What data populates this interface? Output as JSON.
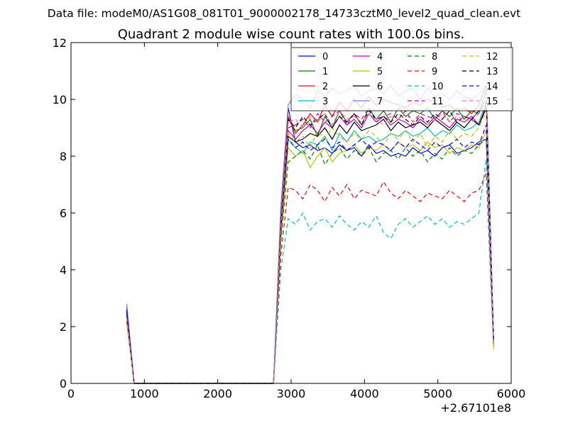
{
  "suptitle": "Data file: modeM0/AS1G08_081T01_9000002178_14733cztM0_level2_quad_clean.evt",
  "chart_data": {
    "type": "line",
    "title": "Quadrant 2 module wise count rates with 100.0s bins.",
    "xlabel": "",
    "ylabel": "",
    "xlim": [
      0,
      6000
    ],
    "ylim": [
      0,
      12
    ],
    "x_ticks": [
      0,
      1000,
      2000,
      3000,
      4000,
      5000,
      6000
    ],
    "x_tick_labels": [
      "0",
      "1000",
      "2000",
      "3000",
      "4000",
      "5000",
      "6000"
    ],
    "y_ticks": [
      0,
      2,
      4,
      6,
      8,
      10,
      12
    ],
    "y_tick_labels": [
      "0",
      "2",
      "4",
      "6",
      "8",
      "10",
      "12"
    ],
    "x_offset_label": "+2.67101e8",
    "grid": false,
    "legend_location": "upper right",
    "legend_columns": 4,
    "x_early": [
      760,
      860,
      960,
      1060,
      1160,
      1260,
      1360,
      1460,
      1560,
      1660,
      1760,
      1860,
      1960,
      2060,
      2160,
      2260,
      2360,
      2460,
      2560,
      2660,
      2760
    ],
    "x_late": [
      2760,
      2860,
      2960,
      3060,
      3160,
      3260,
      3360,
      3460,
      3560,
      3660,
      3760,
      3860,
      3960,
      4060,
      4160,
      4260,
      4360,
      4460,
      4560,
      4660,
      4760,
      4860,
      4960,
      5060,
      5160,
      5260,
      5360,
      5460,
      5560,
      5660,
      5760
    ],
    "series": [
      {
        "name": "0",
        "color": "#0000ff",
        "dash": "solid",
        "start": 2.7,
        "values": [
          0.0,
          5.5,
          9.7,
          8.5,
          8.3,
          8.4,
          8.2,
          8.3,
          8.1,
          8.4,
          8.2,
          8.3,
          8.0,
          8.4,
          8.1,
          8.2,
          8.0,
          8.1,
          8.0,
          8.3,
          8.1,
          8.2,
          8.0,
          8.3,
          8.4,
          8.1,
          8.2,
          8.3,
          8.5,
          8.6,
          1.5
        ]
      },
      {
        "name": "1",
        "color": "#008000",
        "dash": "solid",
        "start": 2.6,
        "values": [
          0.0,
          5.3,
          9.3,
          8.9,
          9.0,
          9.3,
          8.7,
          9.4,
          9.0,
          9.6,
          9.2,
          9.5,
          9.1,
          9.7,
          9.3,
          9.6,
          9.2,
          9.7,
          9.4,
          9.6,
          9.5,
          9.7,
          9.3,
          9.6,
          9.4,
          9.7,
          9.3,
          9.6,
          9.5,
          10.3,
          1.4
        ]
      },
      {
        "name": "2",
        "color": "#ff0000",
        "dash": "solid",
        "start": 2.5,
        "values": [
          0.0,
          5.7,
          9.4,
          8.8,
          9.1,
          9.5,
          9.2,
          9.8,
          9.4,
          9.9,
          9.6,
          10.0,
          9.7,
          10.1,
          9.8,
          10.0,
          9.9,
          9.8,
          9.7,
          9.9,
          9.8,
          10.0,
          9.9,
          9.7,
          9.8,
          9.6,
          9.7,
          9.5,
          9.8,
          10.5,
          1.4
        ]
      },
      {
        "name": "3",
        "color": "#00bfbf",
        "dash": "solid",
        "start": 2.4,
        "values": [
          0.0,
          5.4,
          8.6,
          8.3,
          8.1,
          8.5,
          8.4,
          8.7,
          8.2,
          8.8,
          8.5,
          8.9,
          8.6,
          8.7,
          8.5,
          8.6,
          8.8,
          8.7,
          8.9,
          8.7,
          8.8,
          9.0,
          8.7,
          8.9,
          8.8,
          9.1,
          8.9,
          9.0,
          9.2,
          9.9,
          1.5
        ]
      },
      {
        "name": "4",
        "color": "#bf00bf",
        "dash": "solid",
        "start": 2.3,
        "values": [
          0.0,
          5.2,
          8.9,
          8.6,
          8.9,
          9.1,
          8.8,
          9.2,
          9.0,
          9.4,
          9.1,
          9.3,
          9.0,
          9.5,
          9.2,
          9.4,
          9.1,
          9.3,
          9.2,
          9.0,
          9.3,
          9.1,
          9.4,
          9.2,
          9.0,
          9.3,
          9.2,
          9.4,
          9.1,
          9.8,
          1.4
        ]
      },
      {
        "name": "5",
        "color": "#bfbf00",
        "dash": "solid",
        "start": 2.2,
        "values": [
          0.0,
          5.0,
          8.3,
          8.0,
          8.2,
          7.6,
          8.0,
          8.3,
          7.8,
          8.1,
          8.2,
          8.4,
          8.1,
          8.3,
          8.2,
          8.4,
          8.2,
          8.5,
          8.3,
          8.4,
          8.2,
          8.5,
          8.3,
          8.4,
          8.1,
          8.3,
          8.2,
          8.4,
          8.3,
          8.9,
          1.2
        ]
      },
      {
        "name": "6",
        "color": "#000000",
        "dash": "solid",
        "start": 2.6,
        "values": [
          0.0,
          5.5,
          8.7,
          8.5,
          8.6,
          8.8,
          8.7,
          9.0,
          8.6,
          9.1,
          8.8,
          9.2,
          8.9,
          9.0,
          9.1,
          9.3,
          8.9,
          9.2,
          9.0,
          9.1,
          9.2,
          9.0,
          9.3,
          9.1,
          8.9,
          9.2,
          9.0,
          9.3,
          9.1,
          9.7,
          1.5
        ]
      },
      {
        "name": "7",
        "color": "#7b7bff",
        "dash": "solid",
        "start": 2.8,
        "values": [
          0.0,
          6.2,
          9.8,
          10.2,
          10.0,
          9.7,
          10.3,
          10.1,
          10.4,
          10.2,
          10.3,
          10.5,
          10.1,
          10.3,
          10.4,
          10.2,
          10.5,
          10.1,
          10.3,
          10.4,
          10.0,
          10.4,
          10.1,
          10.2,
          10.0,
          10.3,
          10.1,
          10.0,
          10.2,
          10.4,
          1.7
        ]
      },
      {
        "name": "8",
        "color": "#008000",
        "dash": "dashed",
        "start": 2.5,
        "values": [
          0.0,
          5.0,
          7.8,
          8.0,
          8.2,
          7.9,
          8.4,
          7.7,
          8.1,
          8.3,
          7.9,
          8.2,
          8.0,
          8.3,
          7.8,
          8.1,
          8.2,
          7.9,
          8.3,
          8.0,
          8.2,
          7.8,
          8.1,
          7.9,
          8.3,
          8.0,
          8.2,
          8.1,
          8.4,
          8.6,
          1.3
        ]
      },
      {
        "name": "9",
        "color": "#ff0000",
        "dash": "dashed",
        "start": 2.4,
        "values": [
          0.0,
          4.5,
          6.9,
          6.8,
          6.5,
          7.0,
          6.8,
          6.4,
          6.9,
          6.6,
          7.0,
          6.5,
          6.8,
          6.7,
          6.6,
          7.1,
          6.7,
          6.5,
          6.8,
          6.6,
          6.4,
          6.7,
          6.6,
          6.5,
          6.8,
          6.6,
          6.4,
          6.7,
          6.8,
          7.4,
          1.3
        ]
      },
      {
        "name": "10",
        "color": "#00bfbf",
        "dash": "dashed",
        "start": 2.3,
        "values": [
          0.0,
          4.0,
          5.8,
          5.6,
          6.0,
          5.4,
          5.7,
          5.8,
          5.5,
          5.9,
          5.6,
          5.4,
          5.7,
          5.5,
          5.9,
          5.3,
          5.1,
          5.6,
          5.8,
          5.5,
          5.7,
          5.9,
          5.6,
          5.8,
          5.5,
          5.7,
          5.6,
          5.8,
          6.0,
          7.9,
          1.4
        ]
      },
      {
        "name": "11",
        "color": "#bf00bf",
        "dash": "dashed",
        "start": 2.2,
        "values": [
          0.0,
          5.6,
          9.0,
          9.1,
          9.3,
          9.0,
          9.5,
          9.2,
          9.4,
          9.6,
          9.1,
          9.5,
          9.3,
          9.7,
          9.2,
          9.4,
          9.5,
          9.3,
          9.6,
          9.2,
          9.5,
          9.4,
          9.3,
          9.6,
          9.2,
          9.5,
          9.4,
          9.3,
          9.6,
          10.0,
          1.4
        ]
      },
      {
        "name": "12",
        "color": "#bfbf00",
        "dash": "dashed",
        "start": 2.1,
        "values": [
          0.0,
          5.4,
          8.8,
          8.5,
          8.7,
          8.3,
          8.9,
          8.6,
          9.0,
          8.7,
          8.5,
          8.8,
          8.6,
          8.9,
          8.7,
          8.4,
          8.8,
          8.6,
          8.9,
          8.5,
          8.8,
          8.3,
          8.7,
          8.5,
          8.9,
          8.6,
          8.8,
          8.7,
          9.0,
          9.6,
          1.3
        ]
      },
      {
        "name": "13",
        "color": "#000000",
        "dash": "dashed",
        "start": 2.5,
        "values": [
          0.0,
          5.8,
          9.3,
          9.0,
          9.4,
          9.1,
          9.3,
          9.5,
          9.0,
          9.4,
          9.2,
          9.5,
          9.1,
          9.6,
          9.3,
          9.4,
          9.2,
          9.5,
          9.3,
          9.1,
          9.4,
          9.2,
          9.5,
          9.3,
          9.6,
          9.2,
          9.4,
          9.3,
          9.6,
          9.9,
          1.5
        ]
      },
      {
        "name": "14",
        "color": "#0000ff",
        "dash": "dashed",
        "start": 2.6,
        "values": [
          0.0,
          5.5,
          8.6,
          8.3,
          8.5,
          8.2,
          8.4,
          8.6,
          8.3,
          8.5,
          8.2,
          8.4,
          8.6,
          8.3,
          8.5,
          8.4,
          8.2,
          8.5,
          8.3,
          8.6,
          8.4,
          8.2,
          8.5,
          8.3,
          8.4,
          8.6,
          8.3,
          8.5,
          8.4,
          9.1,
          1.5
        ]
      },
      {
        "name": "15",
        "color": "#ff7b7b",
        "dash": "dashed",
        "start": 2.3,
        "values": [
          0.0,
          5.6,
          9.2,
          9.3,
          9.0,
          9.4,
          9.2,
          9.5,
          9.1,
          9.6,
          9.3,
          9.4,
          9.2,
          9.5,
          9.3,
          9.1,
          9.4,
          9.3,
          9.5,
          9.2,
          9.4,
          9.1,
          9.3,
          9.5,
          9.2,
          9.4,
          9.3,
          9.2,
          9.5,
          9.8,
          1.4
        ]
      }
    ]
  }
}
